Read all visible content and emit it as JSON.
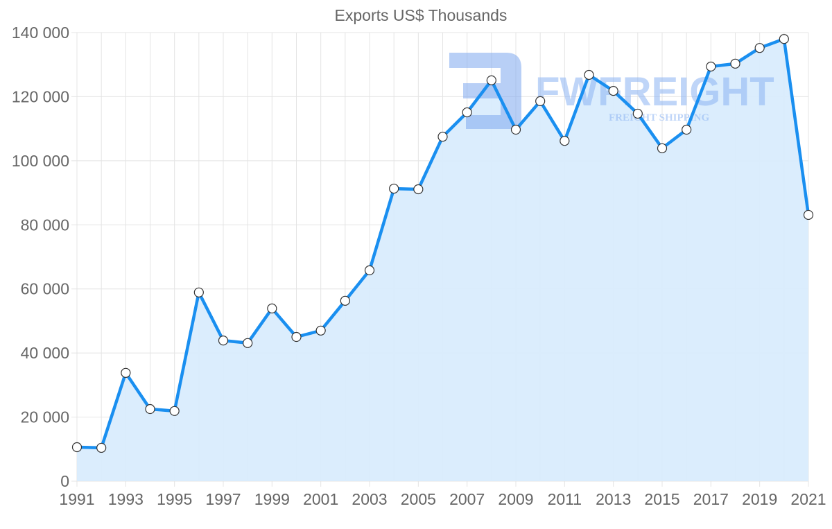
{
  "chart_data": {
    "type": "area",
    "title": "Exports US$ Thousands",
    "xlabel": "",
    "ylabel": "",
    "x": [
      1991,
      1992,
      1993,
      1994,
      1995,
      1996,
      1997,
      1998,
      1999,
      2000,
      2001,
      2002,
      2003,
      2004,
      2005,
      2006,
      2007,
      2008,
      2009,
      2010,
      2011,
      2012,
      2013,
      2014,
      2015,
      2016,
      2017,
      2018,
      2019,
      2020,
      2021
    ],
    "series": [
      {
        "name": "Exports US$ Thousands",
        "values": [
          10600,
          10400,
          33800,
          22500,
          21900,
          58900,
          43900,
          43100,
          53900,
          45000,
          47000,
          56300,
          65800,
          91300,
          91100,
          107500,
          115100,
          125100,
          109700,
          118600,
          106200,
          126800,
          121800,
          114700,
          103900,
          109700,
          129400,
          130300,
          135200,
          138000,
          83100
        ]
      }
    ],
    "xticks": [
      "1991",
      "1993",
      "1995",
      "1997",
      "1999",
      "2001",
      "2003",
      "2005",
      "2007",
      "2009",
      "2011",
      "2013",
      "2015",
      "2017",
      "2019",
      "2021"
    ],
    "yticks": [
      "0",
      "20 000",
      "40 000",
      "60 000",
      "80 000",
      "100 000",
      "120 000",
      "140 000"
    ],
    "ylim": [
      0,
      140000
    ],
    "xlim": [
      1991,
      2021
    ],
    "grid": true,
    "legend": "none",
    "colors": {
      "line": "#1a8ff0",
      "fill": "#d9ecfd",
      "marker_fill": "#ffffff",
      "marker_stroke": "#333333"
    }
  },
  "watermark": {
    "brand": "FWFREIGHT",
    "tagline": "FREIGHT SHIPPING"
  }
}
